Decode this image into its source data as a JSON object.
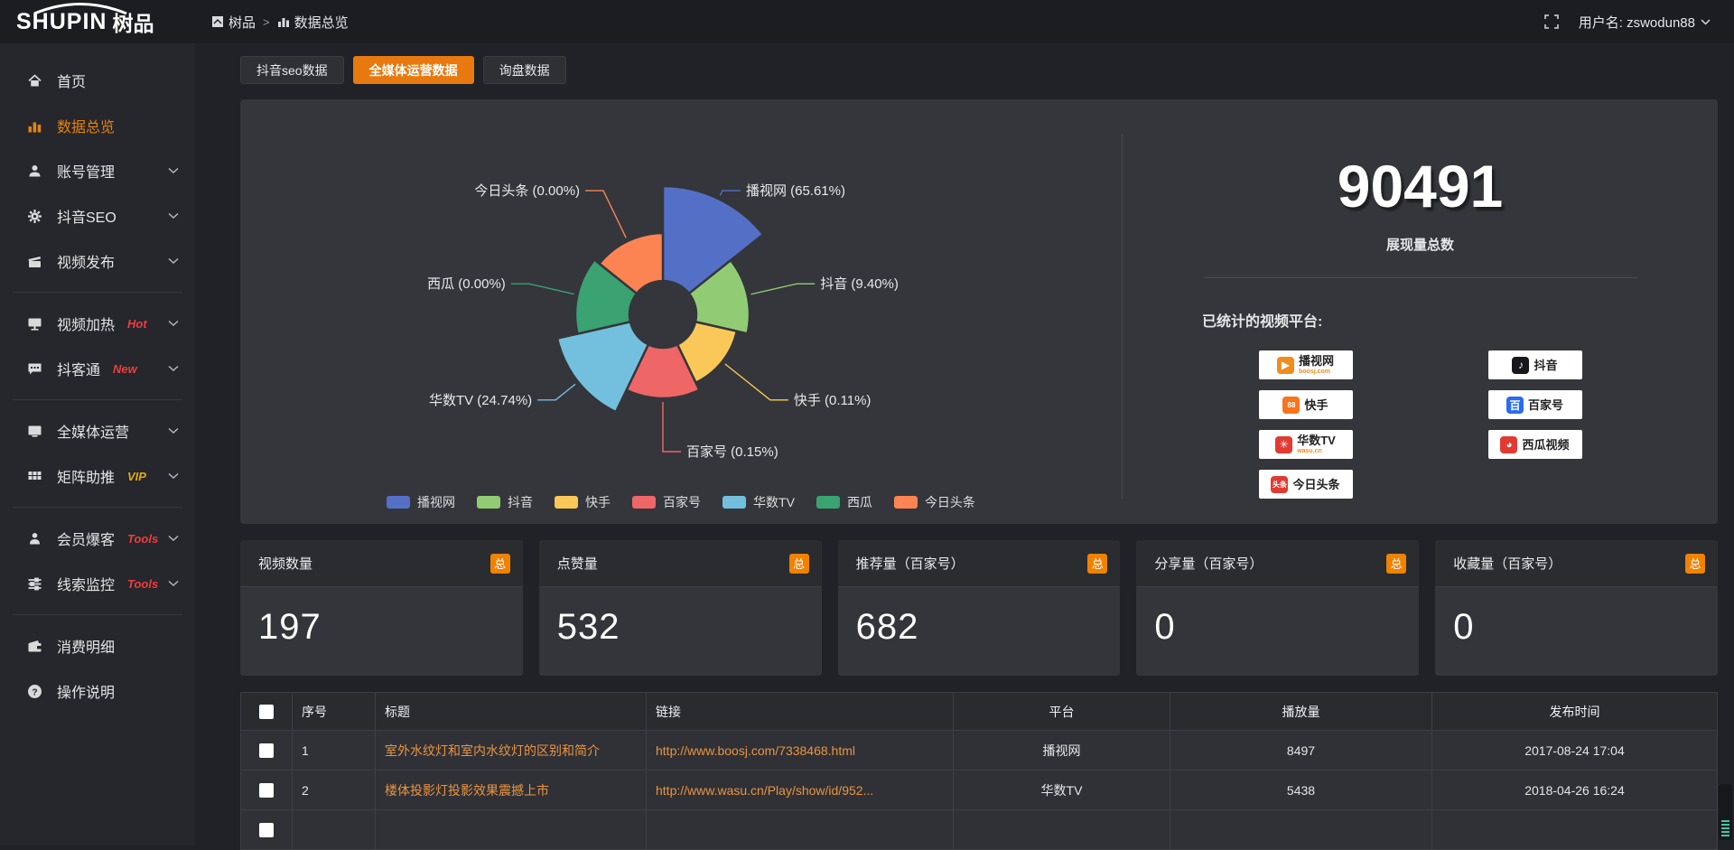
{
  "topbar": {
    "logo_main": "SHUPIN",
    "logo_sub": "树品",
    "breadcrumb": {
      "root": "树品",
      "separator": ">",
      "current": "数据总览"
    },
    "user_label": "用户名: zswodun88"
  },
  "sidebar": {
    "items": [
      {
        "id": "home",
        "icon": "home-icon",
        "label": "首页",
        "badge": "",
        "badge_color": "",
        "chevron": false,
        "active": false,
        "group": 0
      },
      {
        "id": "data-overview",
        "icon": "bars-icon",
        "label": "数据总览",
        "badge": "",
        "badge_color": "",
        "chevron": false,
        "active": true,
        "group": 0
      },
      {
        "id": "account-manage",
        "icon": "user-icon",
        "label": "账号管理",
        "badge": "",
        "badge_color": "",
        "chevron": true,
        "active": false,
        "group": 0
      },
      {
        "id": "douyin-seo",
        "icon": "gear-icon",
        "label": "抖音SEO",
        "badge": "",
        "badge_color": "",
        "chevron": true,
        "active": false,
        "group": 0
      },
      {
        "id": "video-publish",
        "icon": "clapper-icon",
        "label": "视频发布",
        "badge": "",
        "badge_color": "",
        "chevron": true,
        "active": false,
        "group": 0
      },
      {
        "id": "video-heat",
        "icon": "monitor-icon",
        "label": "视频加热",
        "badge": "Hot",
        "badge_color": "#f03c3c",
        "chevron": true,
        "active": false,
        "group": 1
      },
      {
        "id": "douketong",
        "icon": "chat-icon",
        "label": "抖客通",
        "badge": "New",
        "badge_color": "#f03c3c",
        "chevron": true,
        "active": false,
        "group": 1
      },
      {
        "id": "media-operation",
        "icon": "screen-icon",
        "label": "全媒体运营",
        "badge": "",
        "badge_color": "",
        "chevron": true,
        "active": false,
        "group": 2
      },
      {
        "id": "matrix-boost",
        "icon": "grid-icon",
        "label": "矩阵助推",
        "badge": "VIP",
        "badge_color": "#e6a817",
        "chevron": true,
        "active": false,
        "group": 2
      },
      {
        "id": "member-baoke",
        "icon": "person-icon",
        "label": "会员爆客",
        "badge": "Tools",
        "badge_color": "#f03c3c",
        "chevron": true,
        "active": false,
        "group": 3
      },
      {
        "id": "clue-monitor",
        "icon": "sliders-icon",
        "label": "线索监控",
        "badge": "Tools",
        "badge_color": "#f03c3c",
        "chevron": true,
        "active": false,
        "group": 3
      },
      {
        "id": "consume-detail",
        "icon": "wallet-icon",
        "label": "消费明细",
        "badge": "",
        "badge_color": "",
        "chevron": false,
        "active": false,
        "group": 4
      },
      {
        "id": "help",
        "icon": "question-icon",
        "label": "操作说明",
        "badge": "",
        "badge_color": "",
        "chevron": false,
        "active": false,
        "group": 4
      }
    ]
  },
  "tabs": [
    {
      "id": "douyin-seo-data",
      "label": "抖音seo数据",
      "active": false
    },
    {
      "id": "media-op-data",
      "label": "全媒体运营数据",
      "active": true
    },
    {
      "id": "inquiry-data",
      "label": "询盘数据",
      "active": false
    }
  ],
  "chart_data": {
    "type": "pie",
    "subtype": "nightingale-rose",
    "categories": [
      "播视网",
      "抖音",
      "快手",
      "百家号",
      "华数TV",
      "西瓜",
      "今日头条"
    ],
    "values": [
      65.61,
      9.4,
      0.11,
      0.15,
      24.74,
      0.0,
      0.0
    ],
    "value_labels": [
      "65.61",
      "9.40",
      "0.11",
      "0.15",
      "24.74",
      "0.00",
      "0.00"
    ],
    "unit": "%",
    "colors": [
      "#5470c6",
      "#91cc75",
      "#fac858",
      "#ee6666",
      "#73c0de",
      "#3ba272",
      "#fc8452"
    ],
    "radius_hints": [
      142,
      96,
      84,
      93,
      120,
      97,
      90
    ],
    "inner_radius": 37,
    "legend_position": "bottom",
    "label_format": "{name} ({value}%)"
  },
  "summary": {
    "total_value": "90491",
    "total_caption": "展现量总数",
    "platforms_label": "已统计的视频平台:",
    "platform_badges": {
      "left": [
        {
          "name": "播视网",
          "sub": "boosj.com",
          "icon": "boosj-logo",
          "color": "#f28a1e",
          "glyph": "▶"
        },
        {
          "name": "快手",
          "sub": "",
          "icon": "kuaishou-logo",
          "color": "#f7741c",
          "glyph": "88"
        },
        {
          "name": "华数TV",
          "sub": "wasu.cn",
          "icon": "wasu-logo",
          "color": "#e23a30",
          "glyph": "✳"
        },
        {
          "name": "今日头条",
          "sub": "",
          "icon": "toutiao-logo",
          "color": "#e23a30",
          "glyph": "头条"
        }
      ],
      "right": [
        {
          "name": "抖音",
          "sub": "",
          "icon": "douyin-logo",
          "color": "#17171c",
          "glyph": "♪"
        },
        {
          "name": "百家号",
          "sub": "",
          "icon": "baijiahao-logo",
          "color": "#2a6bf2",
          "glyph": "百"
        },
        {
          "name": "西瓜视频",
          "sub": "",
          "icon": "xigua-logo",
          "color": "#e23a30",
          "glyph": "◕"
        }
      ]
    }
  },
  "stat_cards": [
    {
      "label": "视频数量",
      "badge": "总",
      "value": "197"
    },
    {
      "label": "点赞量",
      "badge": "总",
      "value": "532"
    },
    {
      "label": "推荐量（百家号）",
      "badge": "总",
      "value": "682"
    },
    {
      "label": "分享量（百家号）",
      "badge": "总",
      "value": "0"
    },
    {
      "label": "收藏量（百家号）",
      "badge": "总",
      "value": "0"
    }
  ],
  "table": {
    "headers": [
      "序号",
      "标题",
      "链接",
      "平台",
      "播放量",
      "发布时间"
    ],
    "rows": [
      {
        "index": "1",
        "title": "室外水纹灯和室内水纹灯的区别和简介",
        "link": "http://www.boosj.com/7338468.html",
        "platform": "播视网",
        "plays": "8497",
        "time": "2017-08-24 17:04"
      },
      {
        "index": "2",
        "title": "楼体投影灯投影效果震撼上市",
        "link": "http://www.wasu.cn/Play/show/id/952...",
        "platform": "华数TV",
        "plays": "5438",
        "time": "2018-04-26 16:24"
      }
    ]
  },
  "colors": {
    "accent_orange": "#e8820e",
    "tab_active": "#e8790f",
    "badge_orange": "#f08200",
    "link_orange": "#eb9440",
    "hot_red": "#f03c3c",
    "vip_gold": "#e6a817",
    "panel_bg": "#34363b",
    "page_bg": "#202227"
  }
}
